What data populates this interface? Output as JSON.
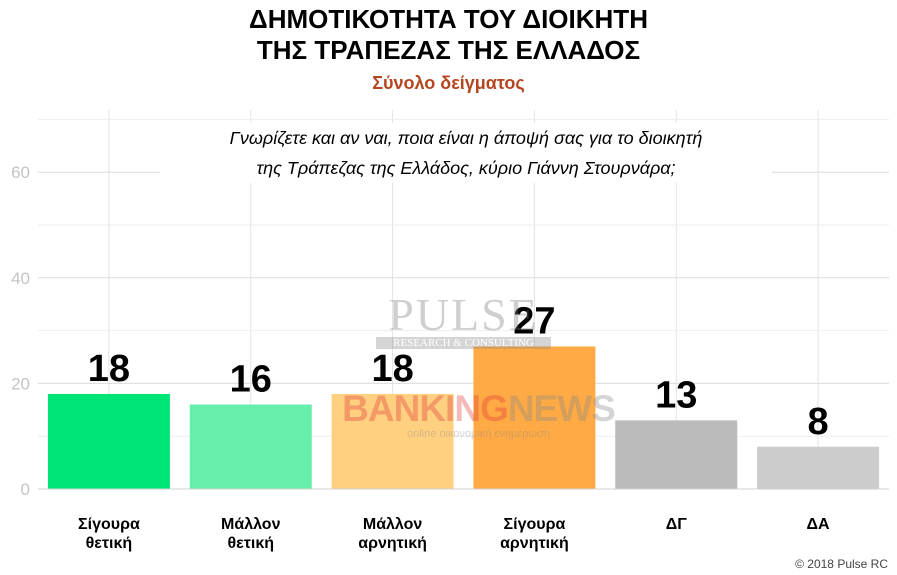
{
  "title_line1": "ΔΗΜΟΤΙΚΟΤΗΤΑ ΤΟΥ ΔΙΟΙΚΗΤΗ",
  "title_line2": "ΤΗΣ ΤΡΑΠΕΖΑΣ ΤΗΣ ΕΛΛΑΔΟΣ",
  "subtitle": "Σύνολο δείγματος",
  "question_line1": "Γνωρίζετε και αν ναι,  ποια είναι η άποψή σας για το διοικητή",
  "question_line2": "της Τράπεζας της Ελλάδος, κύριο Γιάννη Στουρνάρα;",
  "copyright": "© 2018 Pulse RC",
  "watermark": {
    "pulse": "PULSE",
    "pulse_sub": "RESEARCH & CONSULTING",
    "banking": "BANKING",
    "news": "NEWS",
    "banking_sub": "online οικονομική ενημέρωση"
  },
  "chart_data": {
    "type": "bar",
    "categories": [
      [
        "Σίγουρα",
        "θετική"
      ],
      [
        "Μάλλον",
        "θετική"
      ],
      [
        "Μάλλον",
        "αρνητική"
      ],
      [
        "Σίγουρα",
        "αρνητική"
      ],
      [
        "ΔΓ"
      ],
      [
        "ΔΑ"
      ]
    ],
    "values": [
      18,
      16,
      18,
      27,
      13,
      8
    ],
    "colors": [
      "#00e676",
      "#66eeaa",
      "#ffd080",
      "#ffaa44",
      "#bbbbbb",
      "#cccccc"
    ],
    "yticks": [
      0,
      20,
      40,
      60
    ],
    "ylim": [
      0,
      72
    ],
    "grid": true
  }
}
